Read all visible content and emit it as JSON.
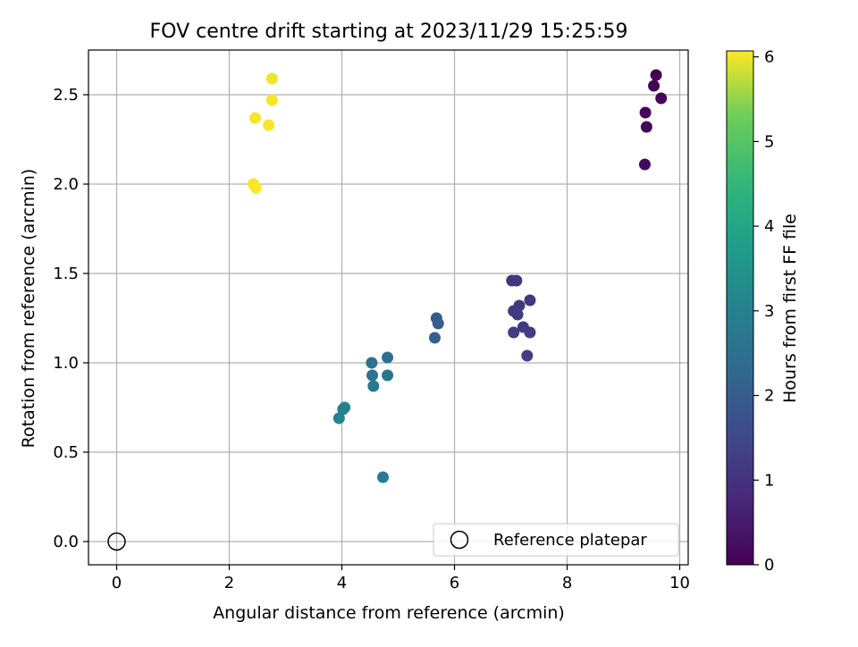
{
  "chart_data": {
    "type": "scatter",
    "title": "FOV centre drift starting at 2023/11/29 15:25:59",
    "xlabel": "Angular distance from reference (arcmin)",
    "ylabel": "Rotation from reference (arcmin)",
    "xlim": [
      -0.5,
      10.15
    ],
    "ylim": [
      -0.13,
      2.75
    ],
    "xticks": [
      0,
      2,
      4,
      6,
      8,
      10
    ],
    "yticks": [
      0.0,
      0.5,
      1.0,
      1.5,
      2.0,
      2.5
    ],
    "xtick_labels": [
      "0",
      "2",
      "4",
      "6",
      "8",
      "10"
    ],
    "ytick_labels": [
      "0.0",
      "0.5",
      "1.0",
      "1.5",
      "2.0",
      "2.5"
    ],
    "grid": true,
    "legend_position": "lower-right",
    "colormap": "viridis",
    "colorbar": {
      "label": "Hours from first FF file",
      "min": 0,
      "max": 6.07,
      "ticks": [
        0,
        1,
        2,
        3,
        4,
        5,
        6
      ],
      "tick_labels": [
        "0",
        "1",
        "2",
        "3",
        "4",
        "5",
        "6"
      ]
    },
    "reference": {
      "label": "Reference platepar",
      "x": 0,
      "y": 0
    },
    "points": [
      {
        "x": 9.58,
        "y": 2.61,
        "c": 0.0
      },
      {
        "x": 9.54,
        "y": 2.55,
        "c": 0.05
      },
      {
        "x": 9.67,
        "y": 2.48,
        "c": 0.08
      },
      {
        "x": 9.39,
        "y": 2.4,
        "c": 0.12
      },
      {
        "x": 9.41,
        "y": 2.32,
        "c": 0.15
      },
      {
        "x": 9.38,
        "y": 2.11,
        "c": 0.18
      },
      {
        "x": 7.02,
        "y": 1.46,
        "c": 1.05
      },
      {
        "x": 7.1,
        "y": 1.46,
        "c": 1.08
      },
      {
        "x": 7.34,
        "y": 1.35,
        "c": 1.1
      },
      {
        "x": 7.15,
        "y": 1.32,
        "c": 1.12
      },
      {
        "x": 7.05,
        "y": 1.29,
        "c": 1.15
      },
      {
        "x": 7.12,
        "y": 1.27,
        "c": 1.18
      },
      {
        "x": 7.22,
        "y": 1.2,
        "c": 1.2
      },
      {
        "x": 7.05,
        "y": 1.17,
        "c": 1.22
      },
      {
        "x": 7.34,
        "y": 1.17,
        "c": 1.25
      },
      {
        "x": 7.29,
        "y": 1.04,
        "c": 1.28
      },
      {
        "x": 5.68,
        "y": 1.25,
        "c": 1.95
      },
      {
        "x": 5.71,
        "y": 1.22,
        "c": 2.0
      },
      {
        "x": 5.65,
        "y": 1.14,
        "c": 2.05
      },
      {
        "x": 4.81,
        "y": 1.03,
        "c": 2.55
      },
      {
        "x": 4.53,
        "y": 1.0,
        "c": 2.6
      },
      {
        "x": 4.54,
        "y": 0.93,
        "c": 2.65
      },
      {
        "x": 4.81,
        "y": 0.93,
        "c": 2.68
      },
      {
        "x": 4.56,
        "y": 0.87,
        "c": 2.72
      },
      {
        "x": 4.05,
        "y": 0.75,
        "c": 3.0
      },
      {
        "x": 4.02,
        "y": 0.74,
        "c": 3.02
      },
      {
        "x": 3.95,
        "y": 0.69,
        "c": 3.05
      },
      {
        "x": 4.73,
        "y": 0.36,
        "c": 2.8
      },
      {
        "x": 2.76,
        "y": 2.59,
        "c": 6.0
      },
      {
        "x": 2.76,
        "y": 2.47,
        "c": 6.02
      },
      {
        "x": 2.46,
        "y": 2.37,
        "c": 6.03
      },
      {
        "x": 2.7,
        "y": 2.33,
        "c": 6.04
      },
      {
        "x": 2.43,
        "y": 2.0,
        "c": 6.05
      },
      {
        "x": 2.47,
        "y": 1.98,
        "c": 6.06
      }
    ]
  }
}
